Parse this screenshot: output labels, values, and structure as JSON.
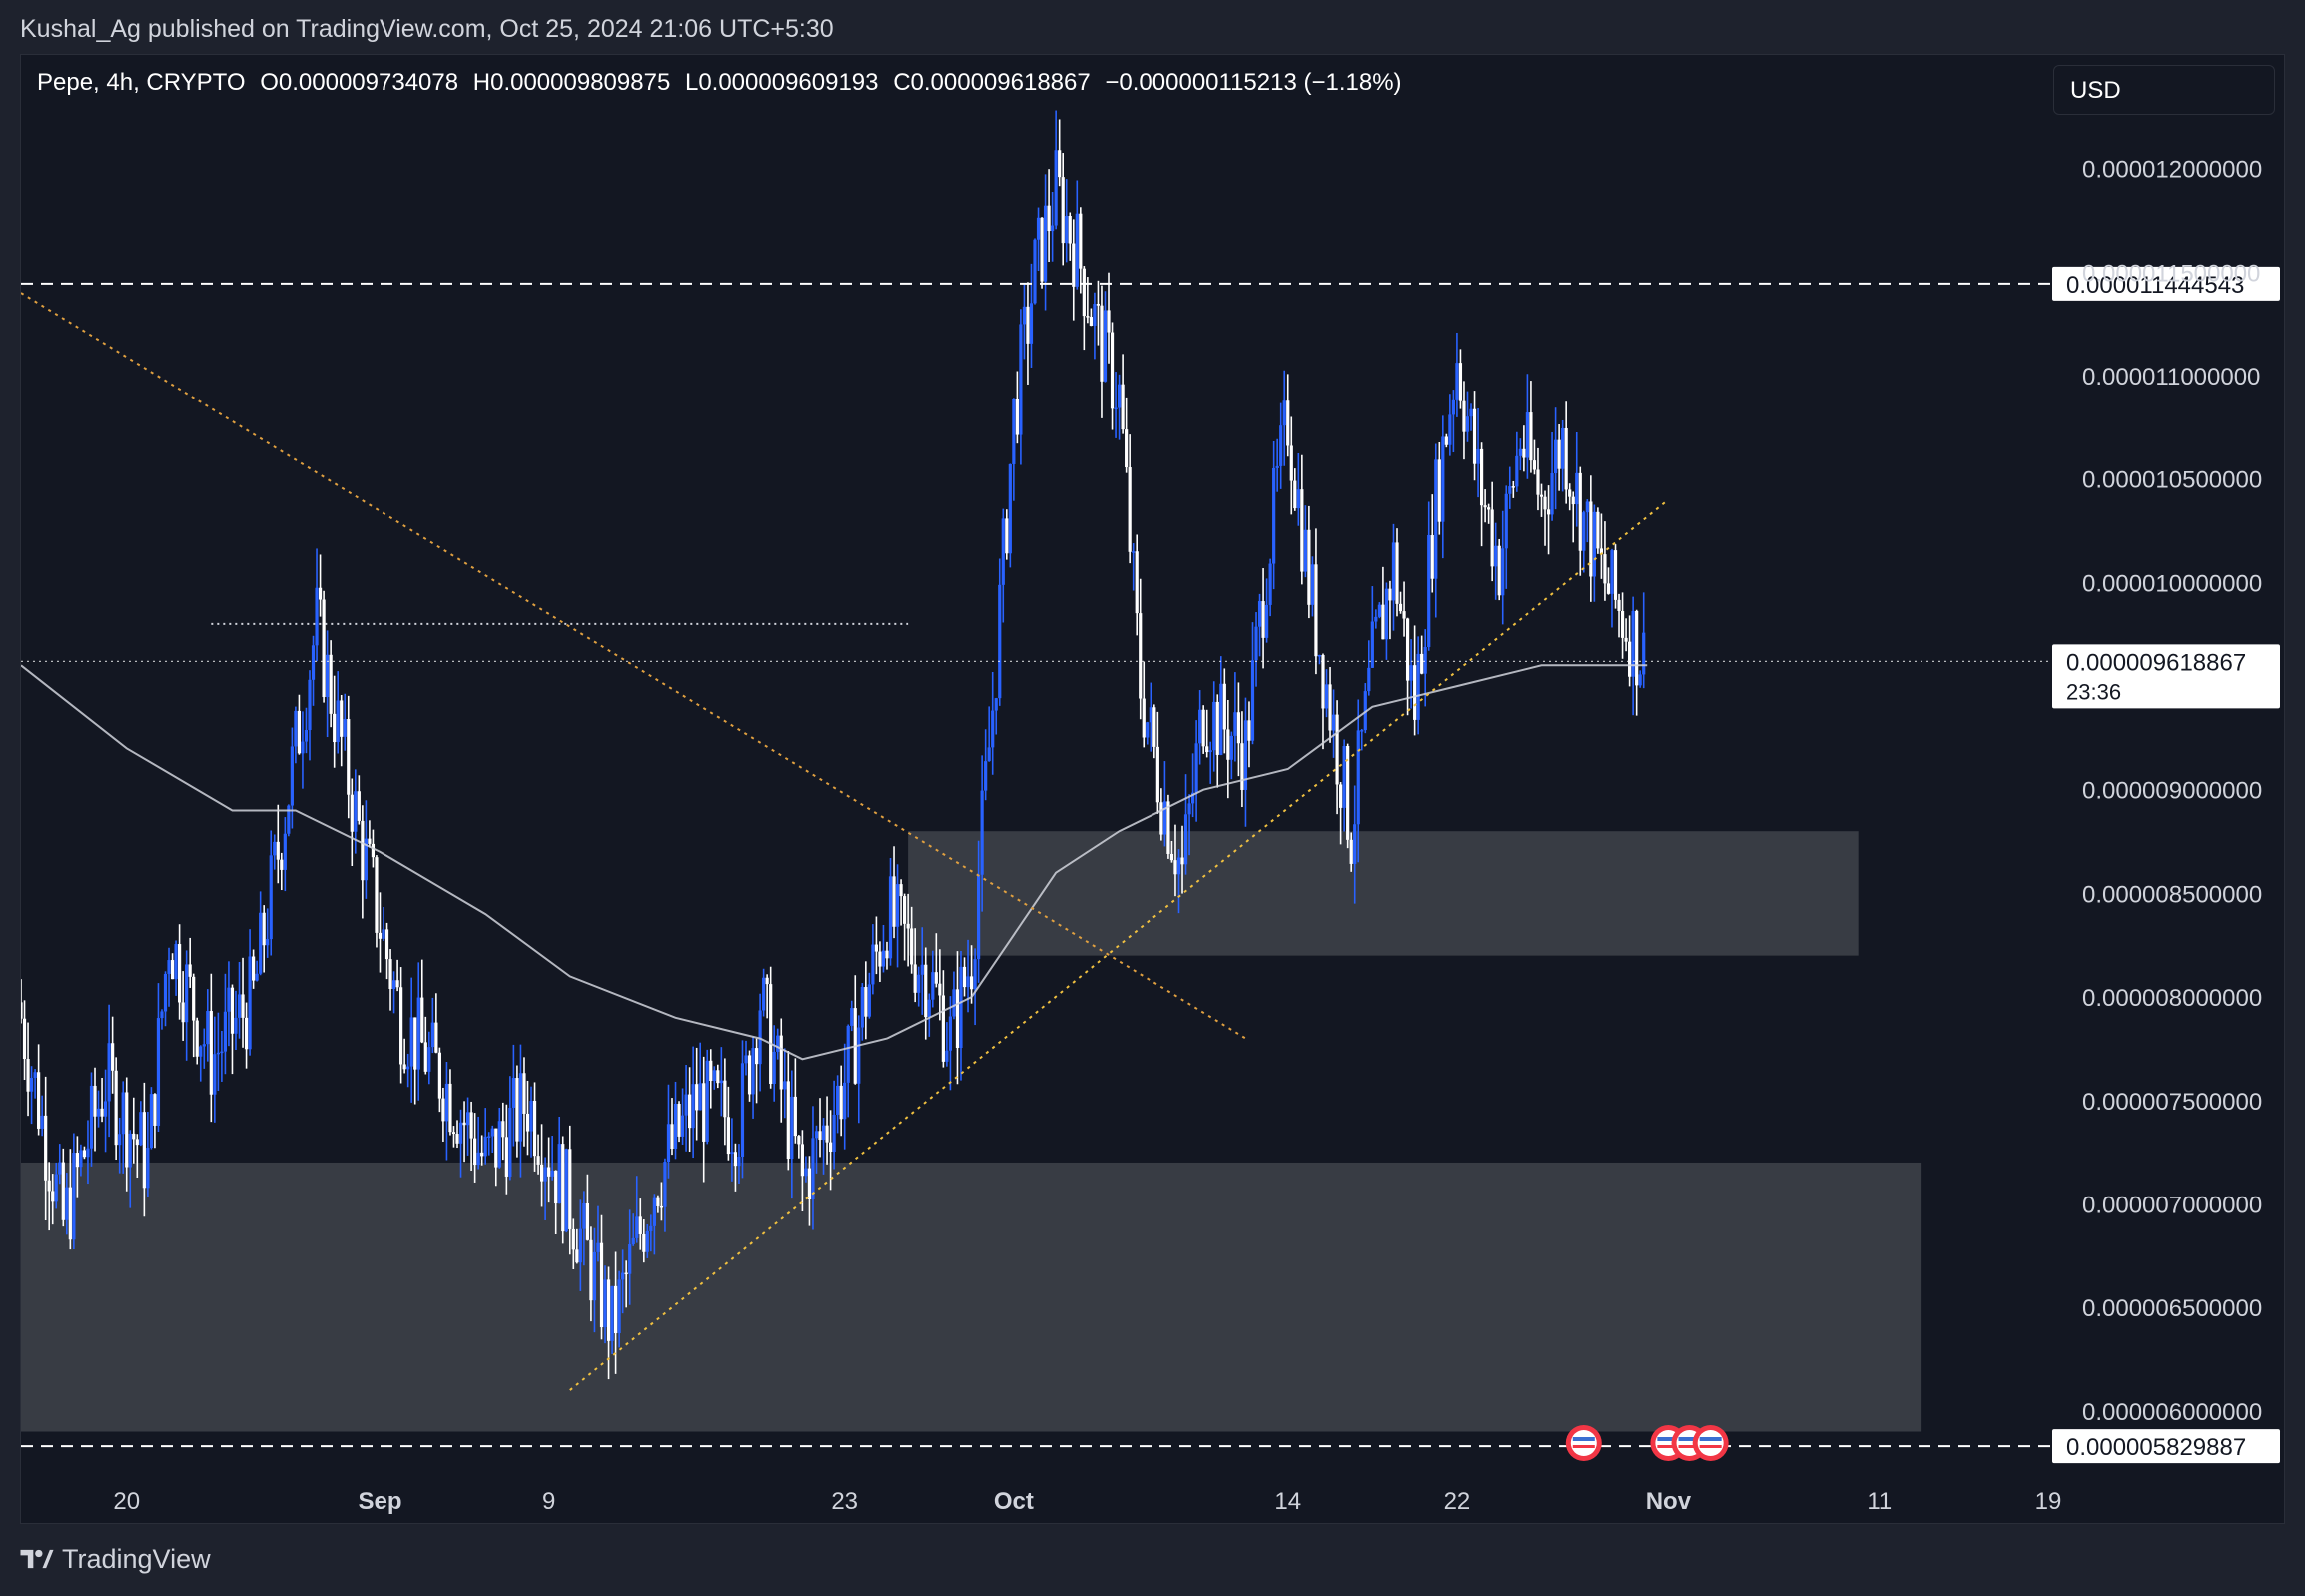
{
  "header": {
    "published_text": "Kushal_Ag published on TradingView.com, Oct 25, 2024 21:06 UTC+5:30"
  },
  "legend": {
    "symbol": "Pepe, 4h, CRYPTO",
    "open": "O0.000009734078",
    "high": "H0.000009809875",
    "low": "L0.000009609193",
    "close": "C0.000009618867",
    "change": "−0.000000115213 (−1.18%)"
  },
  "currency": "USD",
  "footer": {
    "brand": "TradingView"
  },
  "colors": {
    "background": "#131722",
    "candle_up": "#2962ff",
    "candle_down": "#ffffff",
    "zone_fill": "#3a3e47",
    "ma_line": "#d1d4dc",
    "trendline": "#f0c040",
    "downtrend": "#e0a040"
  },
  "chart_data": {
    "type": "candlestick",
    "title": "",
    "interval": "4h",
    "ylim": [
      5.7e-06,
      1.25e-05
    ],
    "y_ticks": [
      "0.000012000000",
      "0.000011500000",
      "0.000011000000",
      "0.000010500000",
      "0.000010000000",
      "0.000009000000",
      "0.000008500000",
      "0.000008000000",
      "0.000007500000",
      "0.000007000000",
      "0.000006500000",
      "0.000006000000"
    ],
    "x_ticks": [
      {
        "label": "20",
        "date": "2024-08-20"
      },
      {
        "label": "Sep",
        "date": "2024-09-01"
      },
      {
        "label": "9",
        "date": "2024-09-09"
      },
      {
        "label": "23",
        "date": "2024-09-23"
      },
      {
        "label": "Oct",
        "date": "2024-10-01"
      },
      {
        "label": "14",
        "date": "2024-10-14"
      },
      {
        "label": "22",
        "date": "2024-10-22"
      },
      {
        "label": "Nov",
        "date": "2024-11-01"
      },
      {
        "label": "11",
        "date": "2024-11-11"
      },
      {
        "label": "19",
        "date": "2024-11-19"
      }
    ],
    "x_range": [
      "2024-08-15",
      "2024-11-19"
    ],
    "price_labels": [
      {
        "text": "0.000011444543",
        "value": 1.1444543e-05,
        "style": "dashed"
      },
      {
        "text": "0.000009618867",
        "sub": "23:36",
        "value": 9.618867e-06,
        "style": "dotted"
      },
      {
        "text": "0.000005829887",
        "value": 5.829887e-06,
        "style": "dashed"
      }
    ],
    "swing_path": [
      [
        "2024-08-15",
        7.9e-06
      ],
      [
        "2024-08-17",
        6.9e-06
      ],
      [
        "2024-08-19",
        7.6e-06
      ],
      [
        "2024-08-21",
        7.2e-06
      ],
      [
        "2024-08-22",
        8.3e-06
      ],
      [
        "2024-08-24",
        7.7e-06
      ],
      [
        "2024-08-26",
        8e-06
      ],
      [
        "2024-08-28",
        9.2e-06
      ],
      [
        "2024-08-29",
        9.8e-06
      ],
      [
        "2024-08-31",
        8.8e-06
      ],
      [
        "2024-09-02",
        7.9e-06
      ],
      [
        "2024-09-04",
        7.6e-06
      ],
      [
        "2024-09-06",
        7.2e-06
      ],
      [
        "2024-09-08",
        7.5e-06
      ],
      [
        "2024-09-10",
        7e-06
      ],
      [
        "2024-09-12",
        6.4e-06
      ],
      [
        "2024-09-14",
        7.1e-06
      ],
      [
        "2024-09-16",
        7.5e-06
      ],
      [
        "2024-09-18",
        7.4e-06
      ],
      [
        "2024-09-19",
        8e-06
      ],
      [
        "2024-09-21",
        7.1e-06
      ],
      [
        "2024-09-23",
        7.6e-06
      ],
      [
        "2024-09-25",
        8.4e-06
      ],
      [
        "2024-09-27",
        8.1e-06
      ],
      [
        "2024-09-28",
        7.8e-06
      ],
      [
        "2024-09-29",
        8.2e-06
      ],
      [
        "2024-09-30",
        9.4e-06
      ],
      [
        "2024-10-01",
        1.08e-05
      ],
      [
        "2024-10-02",
        1.15e-05
      ],
      [
        "2024-10-03",
        1.19e-05
      ],
      [
        "2024-10-04",
        1.16e-05
      ],
      [
        "2024-10-05",
        1.12e-05
      ],
      [
        "2024-10-06",
        1.09e-05
      ],
      [
        "2024-10-07",
        9.5e-06
      ],
      [
        "2024-10-08",
        9e-06
      ],
      [
        "2024-10-09",
        8.6e-06
      ],
      [
        "2024-10-10",
        9.4e-06
      ],
      [
        "2024-10-12",
        9.2e-06
      ],
      [
        "2024-10-13",
        1.01e-05
      ],
      [
        "2024-10-14",
        1.08e-05
      ],
      [
        "2024-10-15",
        1e-05
      ],
      [
        "2024-10-16",
        9.4e-06
      ],
      [
        "2024-10-17",
        8.8e-06
      ],
      [
        "2024-10-18",
        9.6e-06
      ],
      [
        "2024-10-19",
        1.01e-05
      ],
      [
        "2024-10-20",
        9.4e-06
      ],
      [
        "2024-10-21",
        1.04e-05
      ],
      [
        "2024-10-22",
        1.11e-05
      ],
      [
        "2024-10-23",
        1.05e-05
      ],
      [
        "2024-10-24",
        1.01e-05
      ],
      [
        "2024-10-25",
        1.07e-05
      ],
      [
        "2024-10-26",
        1.04e-05
      ],
      [
        "2024-10-27",
        1.07e-05
      ],
      [
        "2024-10-28",
        1.03e-05
      ],
      [
        "2024-10-29",
        1e-05
      ],
      [
        "2024-10-30",
        9.8e-06
      ],
      [
        "2024-10-31",
        9.6e-06
      ]
    ],
    "moving_average": [
      [
        "2024-08-15",
        9.6e-06
      ],
      [
        "2024-08-20",
        9.2e-06
      ],
      [
        "2024-08-25",
        8.9e-06
      ],
      [
        "2024-08-28",
        8.9e-06
      ],
      [
        "2024-09-01",
        8.7e-06
      ],
      [
        "2024-09-06",
        8.4e-06
      ],
      [
        "2024-09-10",
        8.1e-06
      ],
      [
        "2024-09-15",
        7.9e-06
      ],
      [
        "2024-09-19",
        7.8e-06
      ],
      [
        "2024-09-21",
        7.7e-06
      ],
      [
        "2024-09-25",
        7.8e-06
      ],
      [
        "2024-09-29",
        8e-06
      ],
      [
        "2024-10-01",
        8.3e-06
      ],
      [
        "2024-10-03",
        8.6e-06
      ],
      [
        "2024-10-06",
        8.8e-06
      ],
      [
        "2024-10-10",
        9e-06
      ],
      [
        "2024-10-14",
        9.1e-06
      ],
      [
        "2024-10-18",
        9.4e-06
      ],
      [
        "2024-10-22",
        9.5e-06
      ],
      [
        "2024-10-26",
        9.6e-06
      ],
      [
        "2024-10-31",
        9.6e-06
      ]
    ],
    "zones": [
      {
        "from": "2024-09-26",
        "to": "2024-11-10",
        "high": 8.8e-06,
        "low": 8.2e-06
      },
      {
        "from": "2024-08-15",
        "to": "2024-11-13",
        "high": 7.2e-06,
        "low": 5.9e-06
      }
    ],
    "trendlines": [
      {
        "kind": "uptrend",
        "from": [
          "2024-09-10",
          6.1e-06
        ],
        "to": [
          "2024-11-01",
          1.04e-05
        ]
      },
      {
        "kind": "downtrend",
        "from": [
          "2024-08-15",
          1.14e-05
        ],
        "to": [
          "2024-10-12",
          7.8e-06
        ]
      },
      {
        "kind": "resistance",
        "from": [
          "2024-08-24",
          9.8e-06
        ],
        "to": [
          "2024-09-26",
          9.8e-06
        ]
      }
    ],
    "events": [
      "2024-10-28",
      "2024-11-01",
      "2024-11-02",
      "2024-11-03"
    ]
  }
}
